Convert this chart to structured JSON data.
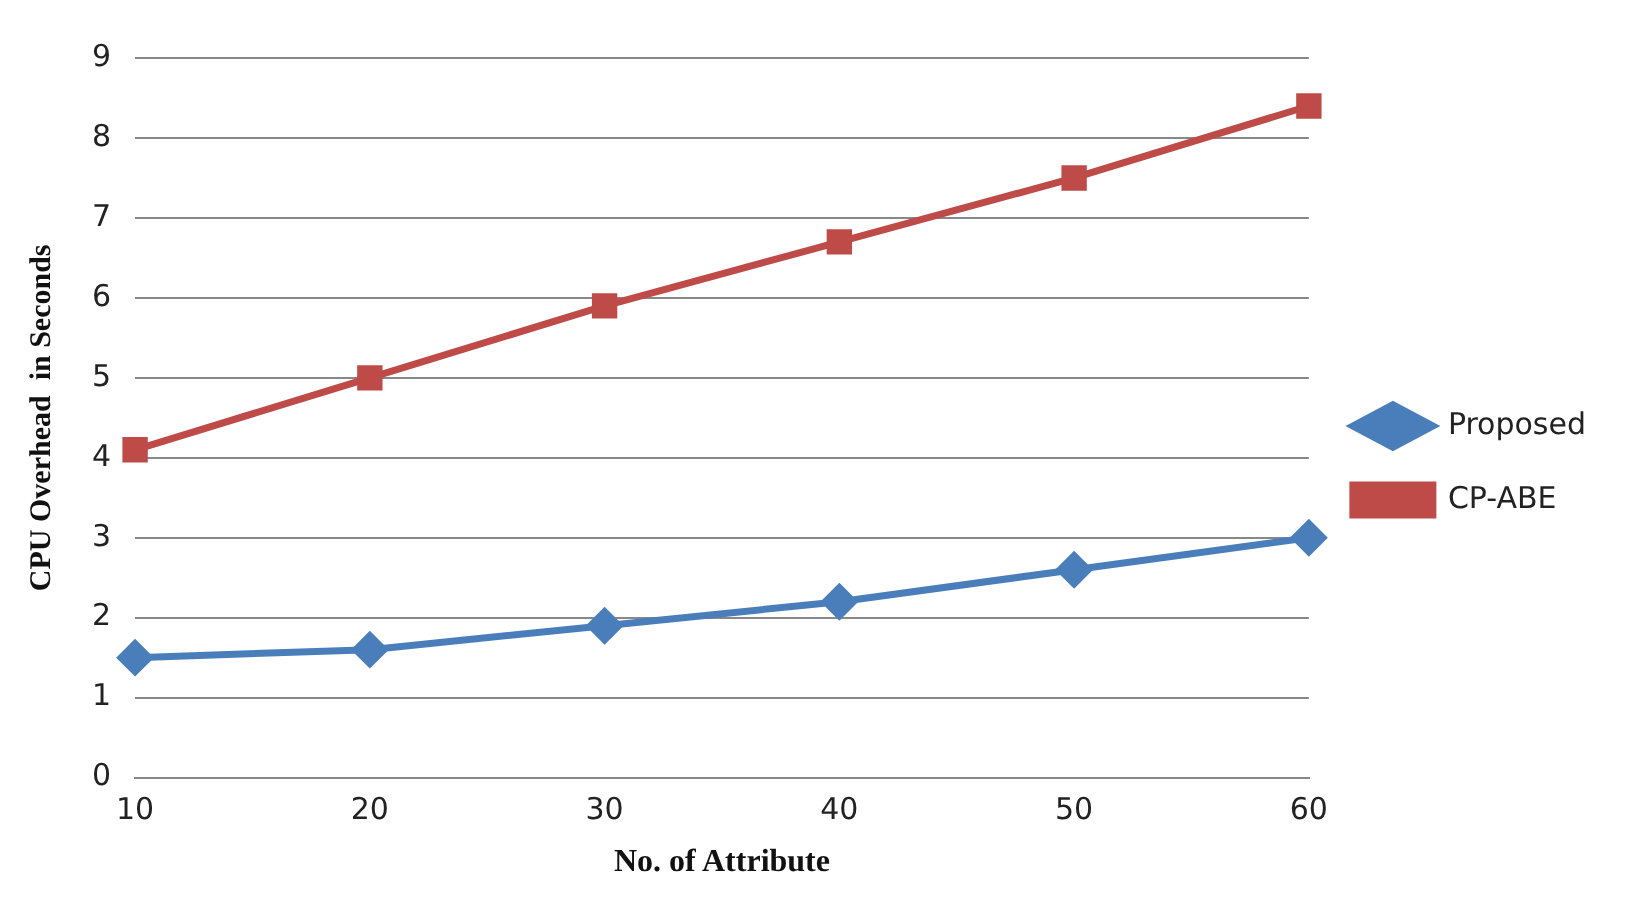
{
  "chart_data": {
    "type": "line",
    "xlabel": "No. of Attribute",
    "ylabel": "CPU Overhead  in Seconds",
    "categories": [
      "10",
      "20",
      "30",
      "40",
      "50",
      "60"
    ],
    "series": [
      {
        "name": "Proposed",
        "color": "#4a7ebb",
        "marker": "diamond",
        "values": [
          1.5,
          1.6,
          1.9,
          2.2,
          2.6,
          3.0
        ]
      },
      {
        "name": "CP-ABE",
        "color": "#be4b48",
        "marker": "square",
        "values": [
          4.1,
          5.0,
          5.9,
          6.7,
          7.5,
          8.4
        ]
      }
    ],
    "ylim": [
      0,
      9
    ],
    "yticks": [
      0,
      1,
      2,
      3,
      4,
      5,
      6,
      7,
      8,
      9
    ],
    "grid": "y",
    "legend": "right"
  }
}
